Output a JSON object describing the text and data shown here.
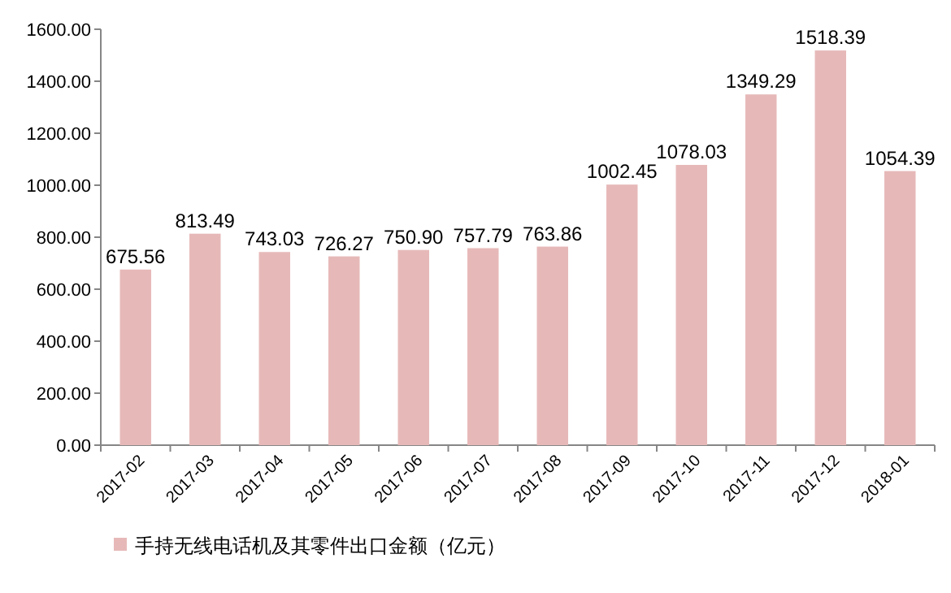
{
  "chart_data": {
    "type": "bar",
    "categories": [
      "2017-02",
      "2017-03",
      "2017-04",
      "2017-05",
      "2017-06",
      "2017-07",
      "2017-08",
      "2017-09",
      "2017-10",
      "2017-11",
      "2017-12",
      "2018-01"
    ],
    "series": [
      {
        "name": "手持无线电话机及其零件出口金额（亿元）",
        "color": "#e6b9b8",
        "values": [
          675.56,
          813.49,
          743.03,
          726.27,
          750.9,
          757.79,
          763.86,
          1002.45,
          1078.03,
          1349.29,
          1518.39,
          1054.39
        ],
        "value_labels": [
          "675.56",
          "813.49",
          "743.03",
          "726.27",
          "750.90",
          "757.79",
          "763.86",
          "1002.45",
          "1078.03",
          "1349.29",
          "1518.39",
          "1054.39"
        ]
      }
    ],
    "ylim": [
      0,
      1600
    ],
    "yticks": [
      {
        "value": 0,
        "label": "0.00"
      },
      {
        "value": 200,
        "label": "200.00"
      },
      {
        "value": 400,
        "label": "400.00"
      },
      {
        "value": 600,
        "label": "600.00"
      },
      {
        "value": 800,
        "label": "800.00"
      },
      {
        "value": 1000,
        "label": "1000.00"
      },
      {
        "value": 1200,
        "label": "1200.00"
      },
      {
        "value": 1400,
        "label": "1400.00"
      },
      {
        "value": 1600,
        "label": "1600.00"
      }
    ],
    "legend": "bottom"
  }
}
